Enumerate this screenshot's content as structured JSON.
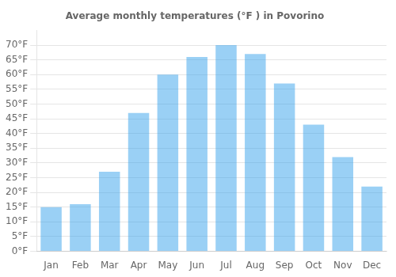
{
  "chart_data": {
    "type": "bar",
    "title": "Average monthly temperatures (°F ) in Povorino",
    "categories": [
      "Jan",
      "Feb",
      "Mar",
      "Apr",
      "May",
      "Jun",
      "Jul",
      "Aug",
      "Sep",
      "Oct",
      "Nov",
      "Dec"
    ],
    "values": [
      15,
      16,
      27,
      47,
      60,
      66,
      70,
      67,
      57,
      43,
      32,
      22
    ],
    "ylim": [
      0,
      75
    ],
    "yticks": [
      {
        "value": 0,
        "label": "0°F"
      },
      {
        "value": 5,
        "label": "5°F"
      },
      {
        "value": 10,
        "label": "10°F"
      },
      {
        "value": 15,
        "label": "15°F"
      },
      {
        "value": 20,
        "label": "20°F"
      },
      {
        "value": 25,
        "label": "25°F"
      },
      {
        "value": 30,
        "label": "30°F"
      },
      {
        "value": 35,
        "label": "35°F"
      },
      {
        "value": 40,
        "label": "40°F"
      },
      {
        "value": 45,
        "label": "45°F"
      },
      {
        "value": 50,
        "label": "50°F"
      },
      {
        "value": 55,
        "label": "55°F"
      },
      {
        "value": 60,
        "label": "60°F"
      },
      {
        "value": 65,
        "label": "65°F"
      },
      {
        "value": 70,
        "label": "70°F"
      }
    ],
    "grid": true
  }
}
